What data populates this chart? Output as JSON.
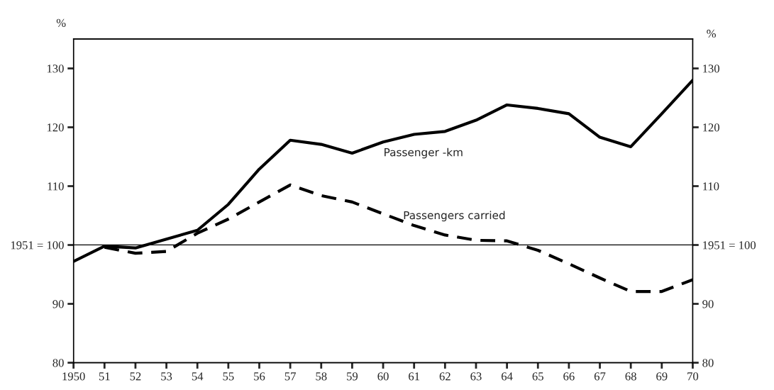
{
  "chart_data": {
    "type": "line",
    "ylabel": "%",
    "y2label": "%",
    "x": [
      1950,
      1951,
      1952,
      1953,
      1954,
      1955,
      1956,
      1957,
      1958,
      1959,
      1960,
      1961,
      1962,
      1963,
      1964,
      1965,
      1966,
      1967,
      1968,
      1969,
      1970
    ],
    "series": [
      {
        "name": "Passenger -km",
        "color": "#000000",
        "line_style": "solid",
        "values": [
          97.2,
          99.8,
          99.5,
          101,
          102.5,
          106.9,
          112.9,
          117.8,
          117.1,
          115.6,
          117.5,
          118.8,
          119.3,
          121.2,
          123.8,
          123.2,
          122.3,
          118.3,
          116.7,
          122.3,
          128.0
        ]
      },
      {
        "name": "Passengers carried",
        "color": "#000000",
        "line_style": "dashed",
        "values": [
          null,
          99.6,
          98.6,
          98.9,
          102,
          104.4,
          107.3,
          110.2,
          108.4,
          107.3,
          105.3,
          103.3,
          101.7,
          100.8,
          100.7,
          99.1,
          96.8,
          94.4,
          92.1,
          92.1,
          94.1
        ]
      }
    ],
    "xlim": [
      1950,
      1970
    ],
    "xticks": [
      {
        "value": 1950,
        "label": "1950"
      },
      {
        "value": 1951,
        "label": "51"
      },
      {
        "value": 1952,
        "label": "52"
      },
      {
        "value": 1953,
        "label": "53"
      },
      {
        "value": 1954,
        "label": "54"
      },
      {
        "value": 1955,
        "label": "55"
      },
      {
        "value": 1956,
        "label": "56"
      },
      {
        "value": 1957,
        "label": "57"
      },
      {
        "value": 1958,
        "label": "58"
      },
      {
        "value": 1959,
        "label": "59"
      },
      {
        "value": 1960,
        "label": "60"
      },
      {
        "value": 1961,
        "label": "61"
      },
      {
        "value": 1962,
        "label": "62"
      },
      {
        "value": 1963,
        "label": "63"
      },
      {
        "value": 1964,
        "label": "64"
      },
      {
        "value": 1965,
        "label": "65"
      },
      {
        "value": 1966,
        "label": "66"
      },
      {
        "value": 1967,
        "label": "67"
      },
      {
        "value": 1968,
        "label": "68"
      },
      {
        "value": 1969,
        "label": "69"
      },
      {
        "value": 1970,
        "label": "70"
      }
    ],
    "ylim": [
      80,
      135
    ],
    "yticks": [
      80,
      90,
      {
        "value": 100,
        "label": "1951 = 100"
      },
      110,
      120,
      130
    ],
    "y2lim": [
      80,
      135
    ],
    "y2ticks": [
      80,
      90,
      {
        "value": 100,
        "label": "1951 = 100"
      },
      110,
      120,
      130
    ],
    "ref_lines": [
      {
        "axis": "y",
        "value": 100,
        "color": "#000000"
      }
    ],
    "grid": false,
    "legend": false
  }
}
